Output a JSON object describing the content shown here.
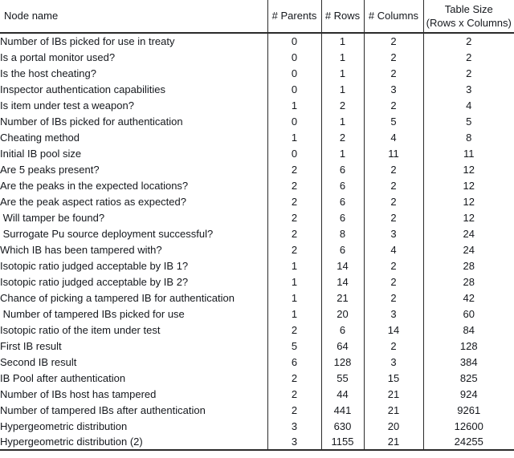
{
  "colors": {
    "text": "#15181d",
    "border": "#2b2b2b",
    "background": "#ffffff"
  },
  "table": {
    "headers": {
      "node": "Node name",
      "parents": "# Parents",
      "rows": "# Rows",
      "columns": "# Columns",
      "size_line1": "Table Size",
      "size_line2": "(Rows x Columns)"
    },
    "rows": [
      {
        "name": "Number of IBs picked for use in treaty",
        "parents": "0",
        "rows": "1",
        "columns": "2",
        "size": "2"
      },
      {
        "name": "Is a portal monitor used?",
        "parents": "0",
        "rows": "1",
        "columns": "2",
        "size": "2"
      },
      {
        "name": "Is the host cheating?",
        "parents": "0",
        "rows": "1",
        "columns": "2",
        "size": "2"
      },
      {
        "name": "Inspector authentication capabilities",
        "parents": "0",
        "rows": "1",
        "columns": "3",
        "size": "3"
      },
      {
        "name": "Is item under test a weapon?",
        "parents": "1",
        "rows": "2",
        "columns": "2",
        "size": "4"
      },
      {
        "name": "Number of IBs picked for authentication",
        "parents": "0",
        "rows": "1",
        "columns": "5",
        "size": "5"
      },
      {
        "name": "Cheating method",
        "parents": "1",
        "rows": "2",
        "columns": "4",
        "size": "8"
      },
      {
        "name": "Initial IB pool size",
        "parents": "0",
        "rows": "1",
        "columns": "11",
        "size": "11"
      },
      {
        "name": "Are 5 peaks present?",
        "parents": "2",
        "rows": "6",
        "columns": "2",
        "size": "12"
      },
      {
        "name": "Are the peaks in the expected locations?",
        "parents": "2",
        "rows": "6",
        "columns": "2",
        "size": "12"
      },
      {
        "name": "Are the peak aspect ratios as expected?",
        "parents": "2",
        "rows": "6",
        "columns": "2",
        "size": "12"
      },
      {
        "name": " Will tamper be found?",
        "parents": "2",
        "rows": "6",
        "columns": "2",
        "size": "12"
      },
      {
        "name": " Surrogate Pu source deployment successful?",
        "parents": "2",
        "rows": "8",
        "columns": "3",
        "size": "24"
      },
      {
        "name": "Which IB has been tampered with?",
        "parents": "2",
        "rows": "6",
        "columns": "4",
        "size": "24"
      },
      {
        "name": "Isotopic ratio judged acceptable by IB 1?",
        "parents": "1",
        "rows": "14",
        "columns": "2",
        "size": "28"
      },
      {
        "name": "Isotopic ratio judged acceptable by IB 2?",
        "parents": "1",
        "rows": "14",
        "columns": "2",
        "size": "28"
      },
      {
        "name": "Chance of picking a tampered IB for authentication",
        "parents": "1",
        "rows": "21",
        "columns": "2",
        "size": "42"
      },
      {
        "name": " Number of tampered IBs picked for use",
        "parents": "1",
        "rows": "20",
        "columns": "3",
        "size": "60"
      },
      {
        "name": "Isotopic ratio of the item under test",
        "parents": "2",
        "rows": "6",
        "columns": "14",
        "size": "84"
      },
      {
        "name": "First IB result",
        "parents": "5",
        "rows": "64",
        "columns": "2",
        "size": "128"
      },
      {
        "name": "Second IB result",
        "parents": "6",
        "rows": "128",
        "columns": "3",
        "size": "384"
      },
      {
        "name": "IB Pool after authentication",
        "parents": "2",
        "rows": "55",
        "columns": "15",
        "size": "825"
      },
      {
        "name": "Number of IBs host has tampered",
        "parents": "2",
        "rows": "44",
        "columns": "21",
        "size": "924"
      },
      {
        "name": "Number of tampered IBs after authentication",
        "parents": "2",
        "rows": "441",
        "columns": "21",
        "size": "9261"
      },
      {
        "name": "Hypergeometric distribution",
        "parents": "3",
        "rows": "630",
        "columns": "20",
        "size": "12600"
      },
      {
        "name": "Hypergeometric distribution (2)",
        "parents": "3",
        "rows": "1155",
        "columns": "21",
        "size": "24255"
      }
    ]
  }
}
